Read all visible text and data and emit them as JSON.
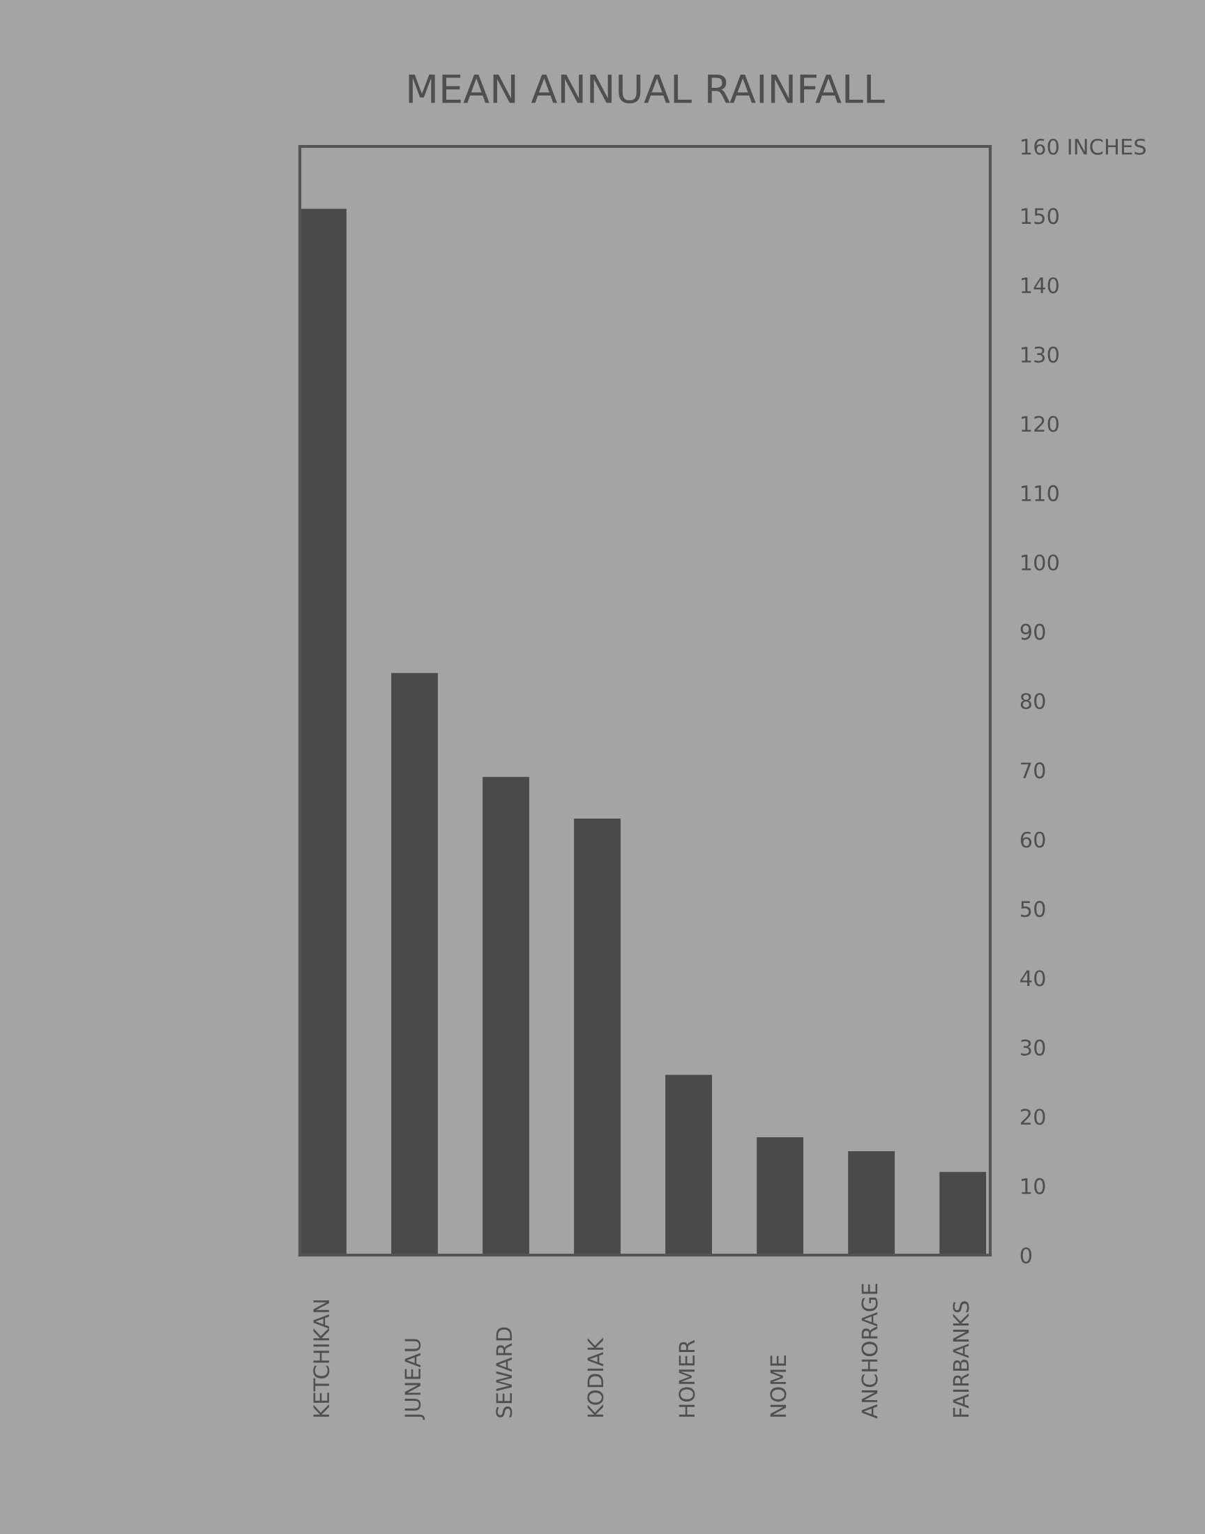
{
  "chart_data": {
    "type": "bar",
    "title": "MEAN ANNUAL RAINFALL",
    "categories": [
      "KETCHIKAN",
      "JUNEAU",
      "SEWARD",
      "KODIAK",
      "HOMER",
      "NOME",
      "ANCHORAGE",
      "FAIRBANKS"
    ],
    "values": [
      151,
      84,
      69,
      63,
      26,
      17,
      15,
      12
    ],
    "color": "#4a4a4a",
    "ylim": [
      0,
      160
    ],
    "yticks": [
      0,
      10,
      20,
      30,
      40,
      50,
      60,
      70,
      80,
      90,
      100,
      110,
      120,
      130,
      140,
      150,
      {
        "value": 160,
        "label": "160 INCHES"
      }
    ],
    "grid": false
  }
}
